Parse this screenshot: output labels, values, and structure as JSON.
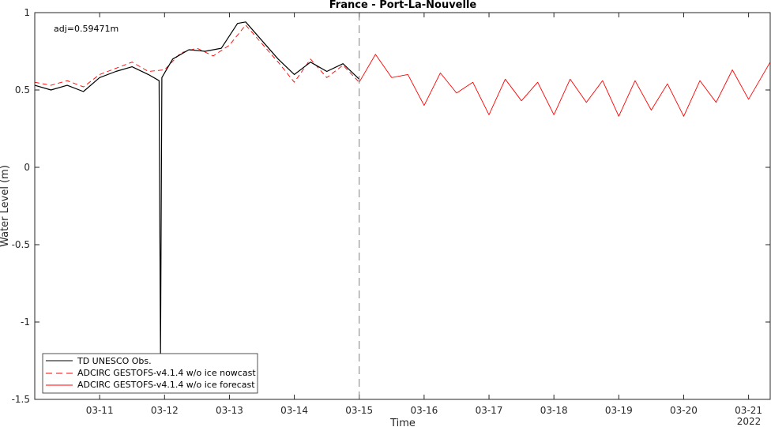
{
  "chart_data": {
    "type": "line",
    "title": "France - Port-La-Nouvelle",
    "xlabel": "Time",
    "ylabel": "Water Level (m)",
    "annotation": "adj=0.59471m",
    "year_label": "2022",
    "xlim": [
      "2022-03-10T00:00",
      "2022-03-21T08:00"
    ],
    "ylim": [
      -1.5,
      1
    ],
    "x_ticks": [
      "03-11",
      "03-12",
      "03-13",
      "03-14",
      "03-15",
      "03-16",
      "03-17",
      "03-18",
      "03-19",
      "03-20",
      "03-21"
    ],
    "y_ticks": [
      "1",
      "0.5",
      "0",
      "-0.5",
      "-1",
      "-1.5"
    ],
    "y_tick_values": [
      1,
      0.5,
      0,
      -0.5,
      -1,
      -1.5
    ],
    "nowcast_forecast_divider": "2022-03-15T00:00",
    "legend_position": "bottom-left",
    "colors": {
      "observed": "#000000",
      "nowcast": "#ff0000",
      "forecast": "#ff0000",
      "divider": "#7f7f7f"
    },
    "series": [
      {
        "name": "TD UNESCO Obs.",
        "style": "solid",
        "points": [
          [
            "2022-03-10T00:00",
            0.53
          ],
          [
            "2022-03-10T06:00",
            0.5
          ],
          [
            "2022-03-10T12:00",
            0.53
          ],
          [
            "2022-03-10T18:00",
            0.49
          ],
          [
            "2022-03-11T00:00",
            0.58
          ],
          [
            "2022-03-11T06:00",
            0.62
          ],
          [
            "2022-03-11T12:00",
            0.65
          ],
          [
            "2022-03-11T18:00",
            0.6
          ],
          [
            "2022-03-11T22:00",
            0.56
          ],
          [
            "2022-03-11T22:30",
            -1.22
          ],
          [
            "2022-03-11T23:00",
            0.58
          ],
          [
            "2022-03-12T03:00",
            0.7
          ],
          [
            "2022-03-12T09:00",
            0.76
          ],
          [
            "2022-03-12T15:00",
            0.75
          ],
          [
            "2022-03-12T21:00",
            0.77
          ],
          [
            "2022-03-13T03:00",
            0.93
          ],
          [
            "2022-03-13T06:00",
            0.94
          ],
          [
            "2022-03-13T12:00",
            0.82
          ],
          [
            "2022-03-13T18:00",
            0.7
          ],
          [
            "2022-03-14T00:00",
            0.6
          ],
          [
            "2022-03-14T06:00",
            0.68
          ],
          [
            "2022-03-14T12:00",
            0.62
          ],
          [
            "2022-03-14T18:00",
            0.67
          ],
          [
            "2022-03-15T00:00",
            0.57
          ]
        ]
      },
      {
        "name": "ADCIRC GESTOFS-v4.1.4 w/o ice nowcast",
        "style": "dashed",
        "points": [
          [
            "2022-03-10T00:00",
            0.55
          ],
          [
            "2022-03-10T06:00",
            0.53
          ],
          [
            "2022-03-10T12:00",
            0.56
          ],
          [
            "2022-03-10T18:00",
            0.52
          ],
          [
            "2022-03-11T00:00",
            0.6
          ],
          [
            "2022-03-11T06:00",
            0.64
          ],
          [
            "2022-03-11T12:00",
            0.68
          ],
          [
            "2022-03-11T18:00",
            0.62
          ],
          [
            "2022-03-12T00:00",
            0.63
          ],
          [
            "2022-03-12T06:00",
            0.74
          ],
          [
            "2022-03-12T12:00",
            0.77
          ],
          [
            "2022-03-12T18:00",
            0.72
          ],
          [
            "2022-03-13T00:00",
            0.79
          ],
          [
            "2022-03-13T06:00",
            0.92
          ],
          [
            "2022-03-13T12:00",
            0.8
          ],
          [
            "2022-03-13T18:00",
            0.68
          ],
          [
            "2022-03-14T00:00",
            0.55
          ],
          [
            "2022-03-14T06:00",
            0.7
          ],
          [
            "2022-03-14T12:00",
            0.58
          ],
          [
            "2022-03-14T18:00",
            0.66
          ],
          [
            "2022-03-15T00:00",
            0.55
          ]
        ]
      },
      {
        "name": "ADCIRC GESTOFS-v4.1.4 w/o ice forecast",
        "style": "solid",
        "points": [
          [
            "2022-03-15T00:00",
            0.55
          ],
          [
            "2022-03-15T06:00",
            0.73
          ],
          [
            "2022-03-15T12:00",
            0.58
          ],
          [
            "2022-03-15T18:00",
            0.6
          ],
          [
            "2022-03-16T00:00",
            0.4
          ],
          [
            "2022-03-16T06:00",
            0.61
          ],
          [
            "2022-03-16T12:00",
            0.48
          ],
          [
            "2022-03-16T18:00",
            0.55
          ],
          [
            "2022-03-17T00:00",
            0.34
          ],
          [
            "2022-03-17T06:00",
            0.57
          ],
          [
            "2022-03-17T12:00",
            0.43
          ],
          [
            "2022-03-17T18:00",
            0.55
          ],
          [
            "2022-03-18T00:00",
            0.34
          ],
          [
            "2022-03-18T06:00",
            0.57
          ],
          [
            "2022-03-18T12:00",
            0.42
          ],
          [
            "2022-03-18T18:00",
            0.56
          ],
          [
            "2022-03-19T00:00",
            0.33
          ],
          [
            "2022-03-19T06:00",
            0.56
          ],
          [
            "2022-03-19T12:00",
            0.37
          ],
          [
            "2022-03-19T18:00",
            0.54
          ],
          [
            "2022-03-20T00:00",
            0.33
          ],
          [
            "2022-03-20T06:00",
            0.56
          ],
          [
            "2022-03-20T12:00",
            0.42
          ],
          [
            "2022-03-20T18:00",
            0.63
          ],
          [
            "2022-03-21T00:00",
            0.44
          ],
          [
            "2022-03-21T08:00",
            0.68
          ]
        ]
      }
    ]
  }
}
